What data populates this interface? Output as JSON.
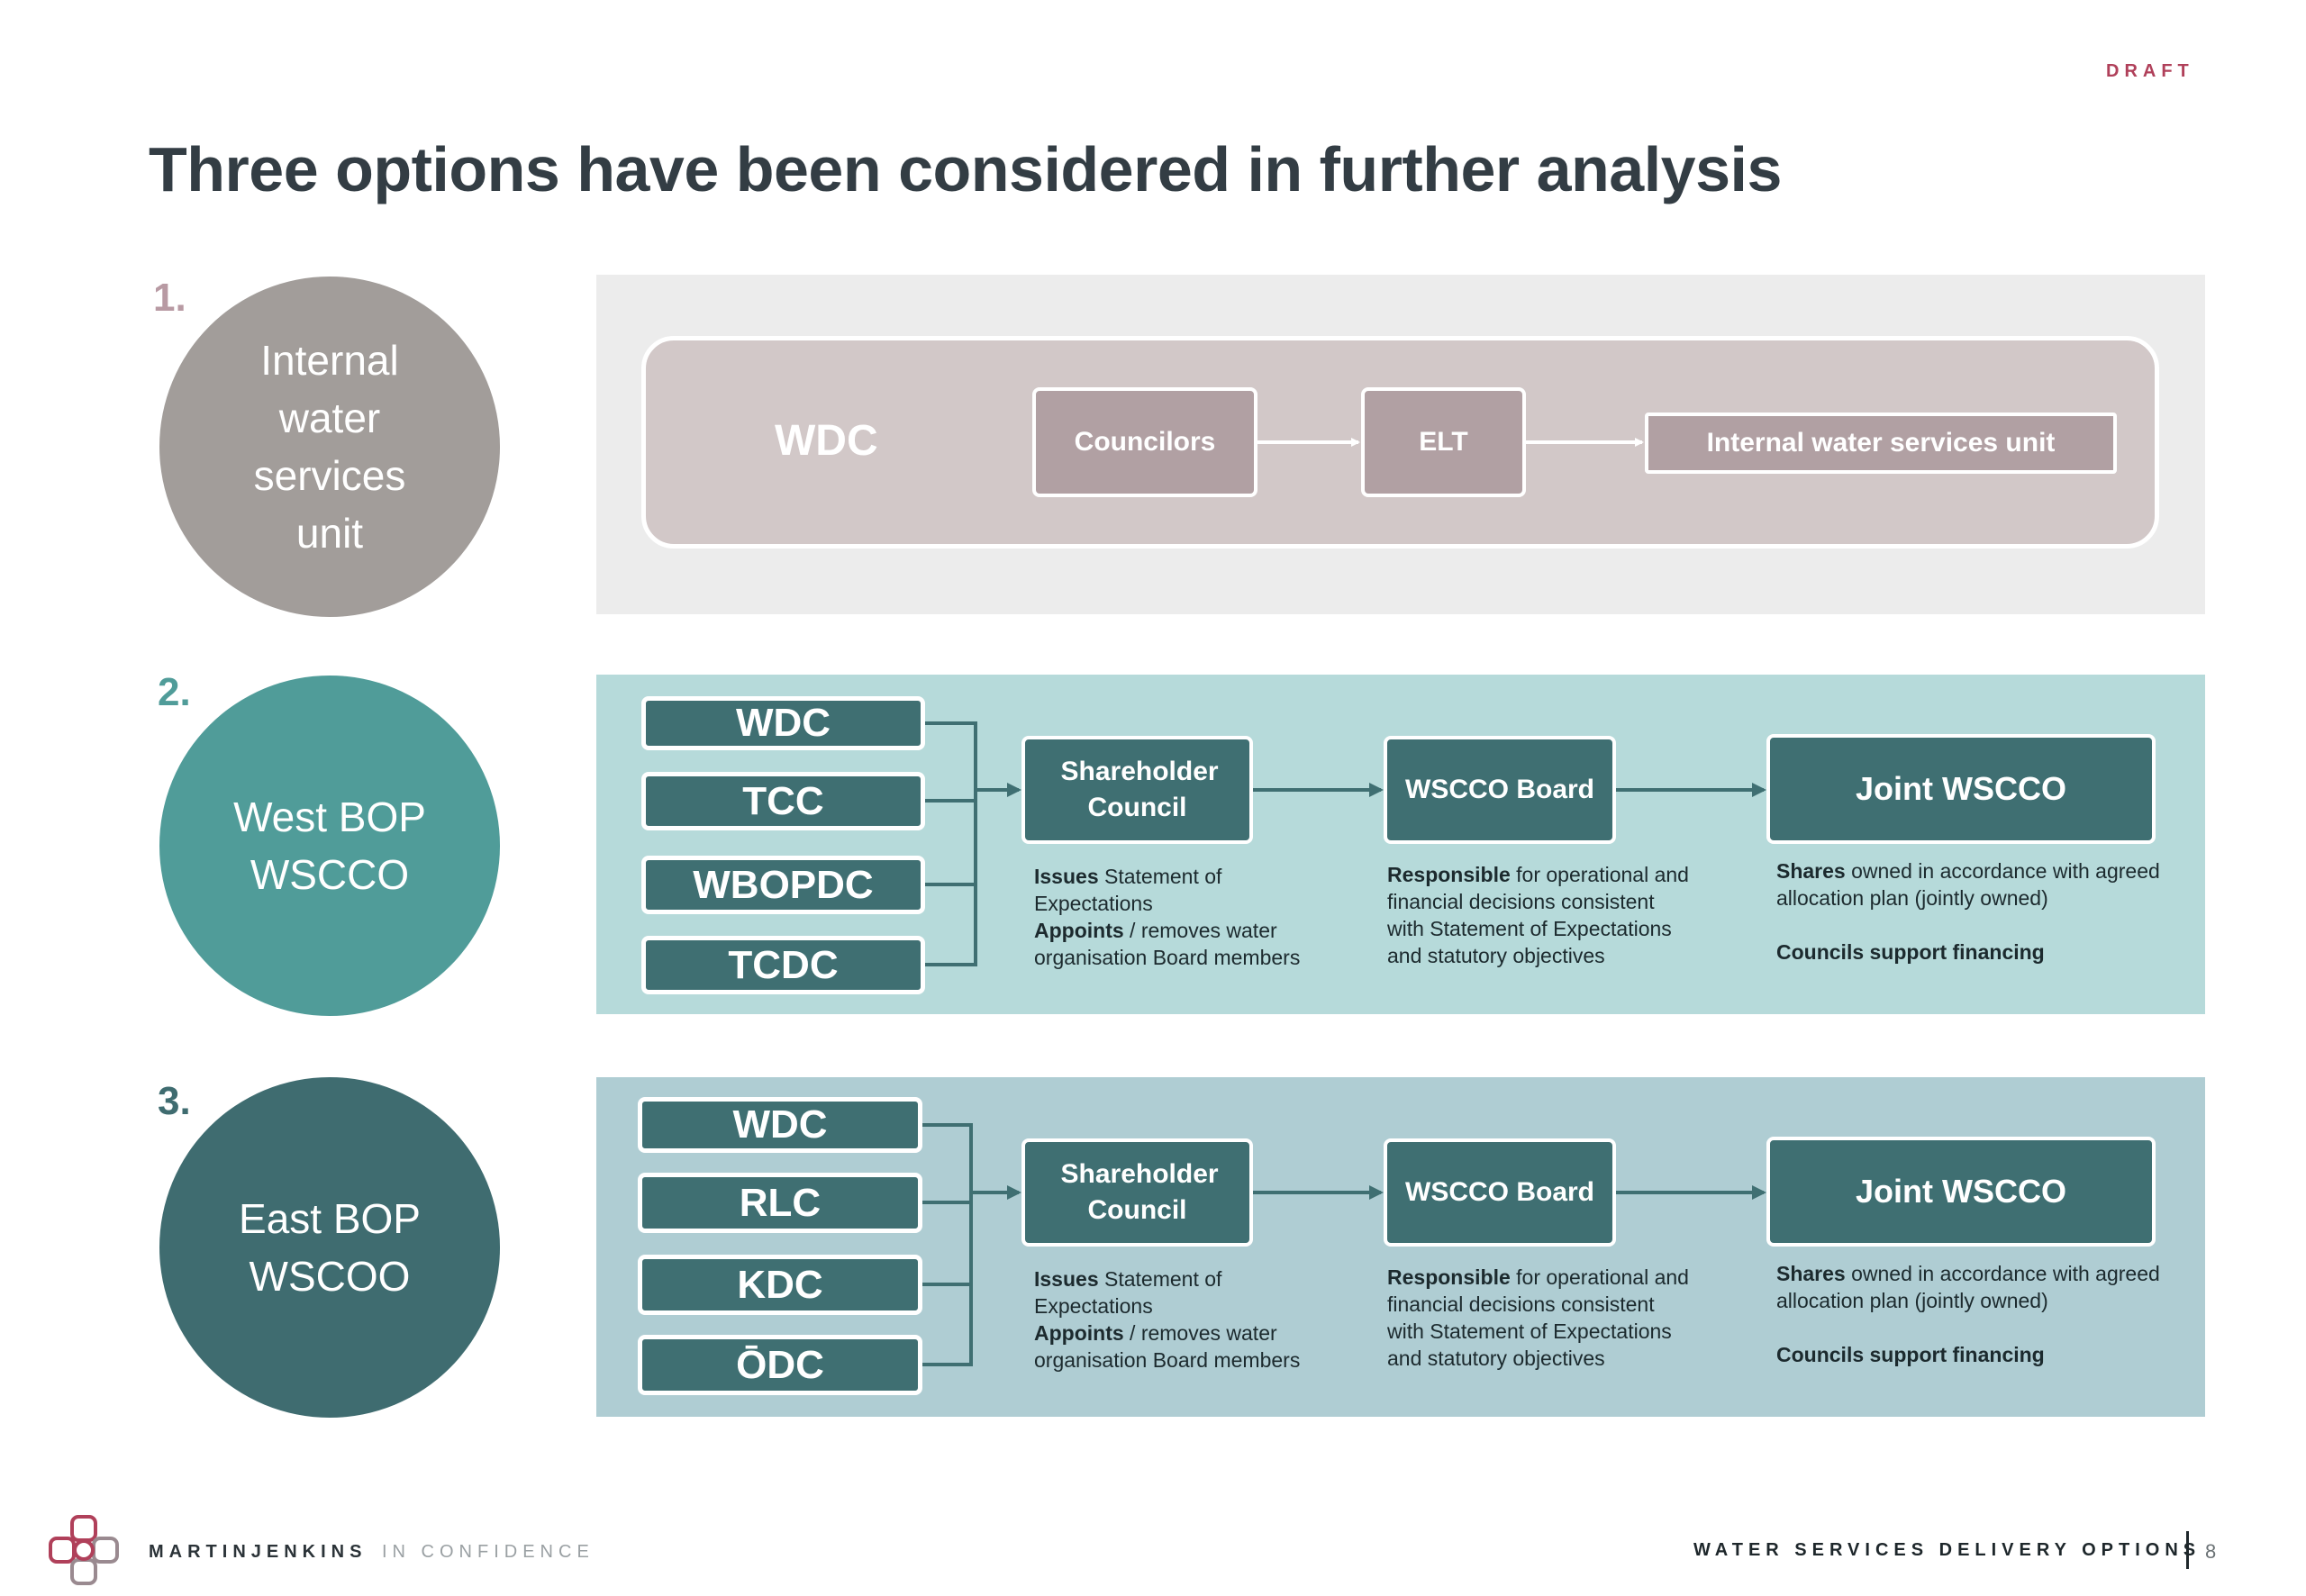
{
  "draft_label": "DRAFT",
  "title": "Three options have been considered in further analysis",
  "option1": {
    "number": "1.",
    "circle_text": "Internal water services unit",
    "org": "WDC",
    "flow": [
      "Councilors",
      "ELT",
      "Internal water services unit"
    ]
  },
  "option2": {
    "number": "2.",
    "circle_text": "West BOP WSCCO",
    "councils": [
      "WDC",
      "TCC",
      "WBOPDC",
      "TCDC"
    ],
    "shareholder": "Shareholder Council",
    "board": "WSCCO Board",
    "joint": "Joint WSCCO",
    "desc1": {
      "b1": "Issues",
      "t1": " Statement of Expectations",
      "b2": "Appoints",
      "t2": " / removes water organisation Board members"
    },
    "desc2": {
      "b1": "Responsible",
      "t1": " for operational and financial decisions consistent with Statement of Expectations and statutory objectives"
    },
    "desc3": {
      "b1": "Shares",
      "t1": " owned in accordance with agreed allocation plan (jointly owned)",
      "b2": "Councils support financing"
    }
  },
  "option3": {
    "number": "3.",
    "circle_text": "East BOP WSCOO",
    "councils": [
      "WDC",
      "RLC",
      "KDC",
      "ŌDC"
    ],
    "shareholder": "Shareholder Council",
    "board": "WSCCO Board",
    "joint": "Joint WSCCO",
    "desc1": {
      "b1": "Issues",
      "t1": " Statement of Expectations",
      "b2": "Appoints",
      "t2": " / removes water organisation Board members"
    },
    "desc2": {
      "b1": "Responsible",
      "t1": " for operational and financial decisions consistent with Statement of Expectations and statutory objectives"
    },
    "desc3": {
      "b1": "Shares",
      "t1": " owned in accordance with agreed allocation plan (jointly owned)",
      "b2": "Councils support financing"
    }
  },
  "footer": {
    "brand": "MARTINJENKINS",
    "confidentiality": "IN CONFIDENCE",
    "doc_title": "WATER SERVICES DELIVERY OPTIONS",
    "page": "8"
  },
  "colors": {
    "grey_circle": "#a29d9a",
    "teal_circle": "#509c99",
    "dark_circle": "#3f6c70",
    "panel1": "#ececec",
    "panel2": "#b6dada",
    "panel3": "#afcdd3",
    "box_teal": "#3f6f72",
    "mauve_box": "#b1a0a3",
    "accent": "#b0405a"
  },
  "icons": [
    "martinjenkins-logo-icon",
    "arrow-right-icon",
    "bracket-connector-icon"
  ]
}
